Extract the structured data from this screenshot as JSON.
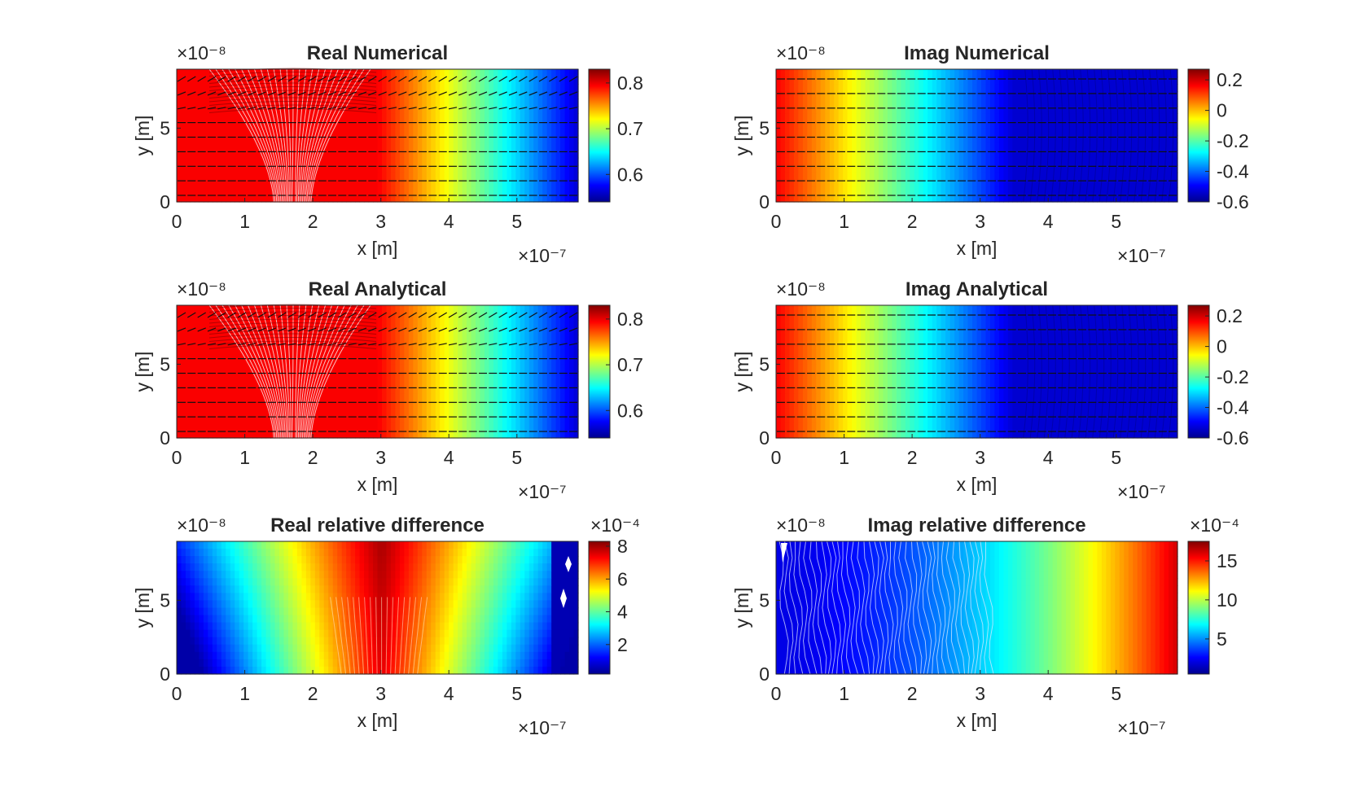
{
  "figure": {
    "colormap": "jet"
  },
  "chart_data": [
    {
      "type": "heatmap",
      "title": "Real Numerical",
      "xlabel": "x [m]",
      "ylabel": "y [m]",
      "x_exponent": "×10⁻⁷",
      "y_exponent": "×10⁻⁸",
      "xticks": [
        "0",
        "1",
        "2",
        "3",
        "4",
        "5"
      ],
      "xlim": [
        0,
        5.9
      ],
      "yticks": [
        "0",
        "5"
      ],
      "ylim": [
        0,
        9
      ],
      "colorbar": {
        "ticks": [
          "0.6",
          "0.7",
          "0.8"
        ],
        "tick_values": [
          0.6,
          0.7,
          0.8
        ],
        "range": [
          0.54,
          0.83
        ],
        "exponent": ""
      },
      "field": "real",
      "contours": "dense-center",
      "quiver": true
    },
    {
      "type": "heatmap",
      "title": "Imag Numerical",
      "xlabel": "x [m]",
      "ylabel": "y [m]",
      "x_exponent": "×10⁻⁷",
      "y_exponent": "×10⁻⁸",
      "xticks": [
        "0",
        "1",
        "2",
        "3",
        "4",
        "5"
      ],
      "xlim": [
        0,
        5.9
      ],
      "yticks": [
        "0",
        "5"
      ],
      "ylim": [
        0,
        9
      ],
      "colorbar": {
        "ticks": [
          "-0.6",
          "-0.4",
          "-0.2",
          "0",
          "0.2"
        ],
        "tick_values": [
          -0.6,
          -0.4,
          -0.2,
          0,
          0.2
        ],
        "range": [
          -0.6,
          0.27
        ],
        "exponent": ""
      },
      "field": "imag",
      "contours": "right-dense",
      "quiver": true
    },
    {
      "type": "heatmap",
      "title": "Real Analytical",
      "xlabel": "x [m]",
      "ylabel": "y [m]",
      "x_exponent": "×10⁻⁷",
      "y_exponent": "×10⁻⁸",
      "xticks": [
        "0",
        "1",
        "2",
        "3",
        "4",
        "5"
      ],
      "xlim": [
        0,
        5.9
      ],
      "yticks": [
        "0",
        "5"
      ],
      "ylim": [
        0,
        9
      ],
      "colorbar": {
        "ticks": [
          "0.6",
          "0.7",
          "0.8"
        ],
        "tick_values": [
          0.6,
          0.7,
          0.8
        ],
        "range": [
          0.54,
          0.83
        ],
        "exponent": ""
      },
      "field": "real",
      "contours": "dense-center",
      "quiver": true
    },
    {
      "type": "heatmap",
      "title": "Imag Analytical",
      "xlabel": "x [m]",
      "ylabel": "y [m]",
      "x_exponent": "×10⁻⁷",
      "y_exponent": "×10⁻⁸",
      "xticks": [
        "0",
        "1",
        "2",
        "3",
        "4",
        "5"
      ],
      "xlim": [
        0,
        5.9
      ],
      "yticks": [
        "0",
        "5"
      ],
      "ylim": [
        0,
        9
      ],
      "colorbar": {
        "ticks": [
          "-0.6",
          "-0.4",
          "-0.2",
          "0",
          "0.2"
        ],
        "tick_values": [
          -0.6,
          -0.4,
          -0.2,
          0,
          0.2
        ],
        "range": [
          -0.6,
          0.27
        ],
        "exponent": ""
      },
      "field": "imag",
      "contours": "right-dense",
      "quiver": true
    },
    {
      "type": "heatmap",
      "title": "Real relative difference",
      "xlabel": "x [m]",
      "ylabel": "y [m]",
      "x_exponent": "×10⁻⁷",
      "y_exponent": "×10⁻⁸",
      "xticks": [
        "0",
        "1",
        "2",
        "3",
        "4",
        "5"
      ],
      "xlim": [
        0,
        5.9
      ],
      "yticks": [
        "0",
        "5"
      ],
      "ylim": [
        0,
        9
      ],
      "colorbar": {
        "ticks": [
          "2",
          "4",
          "6",
          "8"
        ],
        "tick_values": [
          2,
          4,
          6,
          8
        ],
        "range": [
          0.2,
          8.3
        ],
        "exponent": "×10⁻⁴"
      },
      "field": "realdiff",
      "contours": "none",
      "quiver": false
    },
    {
      "type": "heatmap",
      "title": "Imag relative difference",
      "xlabel": "x [m]",
      "ylabel": "y [m]",
      "x_exponent": "×10⁻⁷",
      "y_exponent": "×10⁻⁸",
      "xticks": [
        "0",
        "1",
        "2",
        "3",
        "4",
        "5"
      ],
      "xlim": [
        0,
        5.9
      ],
      "yticks": [
        "0",
        "5"
      ],
      "ylim": [
        0,
        9
      ],
      "colorbar": {
        "ticks": [
          "5",
          "10",
          "15"
        ],
        "tick_values": [
          5,
          10,
          15
        ],
        "range": [
          0.5,
          17.5
        ],
        "exponent": "×10⁻⁴"
      },
      "field": "imagdiff",
      "contours": "left-wavy",
      "quiver": false
    }
  ]
}
